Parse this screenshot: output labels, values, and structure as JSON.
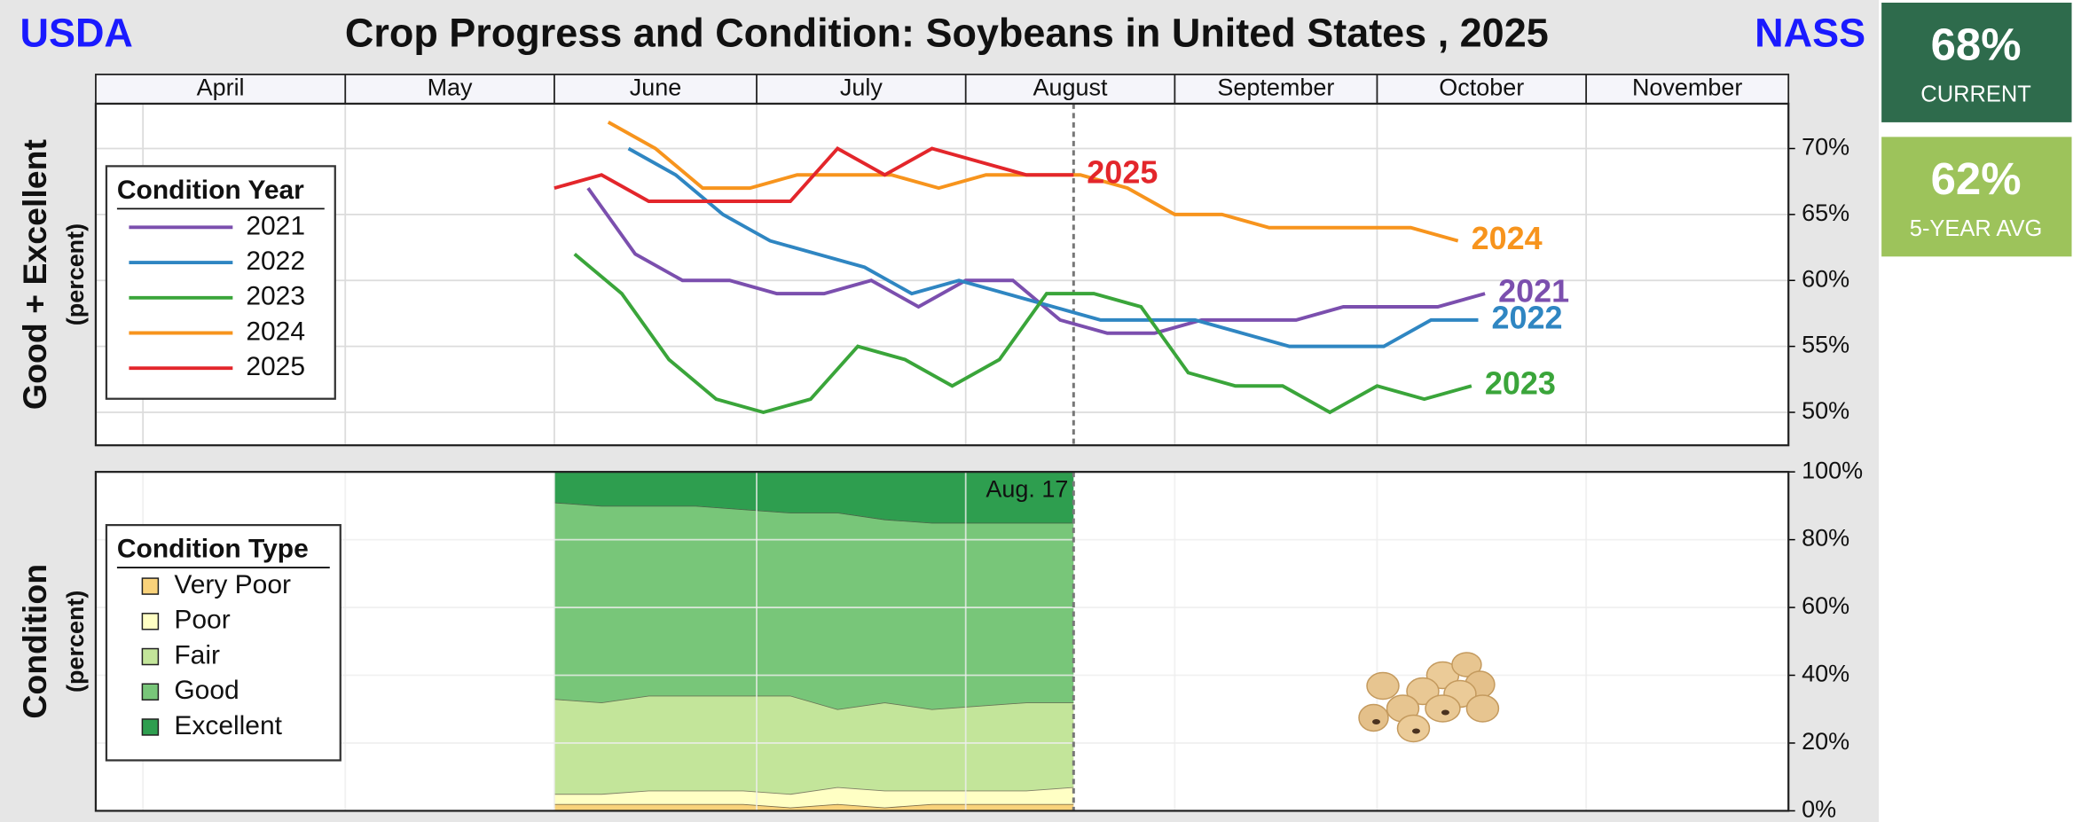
{
  "header": {
    "left": "USDA",
    "title": "Crop Progress and Condition: Soybeans in United States , 2025",
    "right": "NASS"
  },
  "cards": [
    {
      "value": "68%",
      "label": "CURRENT",
      "color": "#2e6b4c"
    },
    {
      "value": "62%",
      "label": "5-YEAR AVG",
      "color": "#9dc35b"
    }
  ],
  "chart_data": [
    {
      "type": "line",
      "y_label": "Good + Excellent",
      "y_sublabel": "(percent)",
      "legend_title": "Condition Year",
      "xlim": [
        84,
        335
      ],
      "xticks": [
        {
          "value": 91,
          "label": "April"
        },
        {
          "value": 121,
          "label": "May"
        },
        {
          "value": 152,
          "label": "June"
        },
        {
          "value": 182,
          "label": "July"
        },
        {
          "value": 213,
          "label": "August"
        },
        {
          "value": 244,
          "label": "September"
        },
        {
          "value": 274,
          "label": "October"
        },
        {
          "value": 305,
          "label": "November"
        }
      ],
      "ylim": [
        47.5,
        73.4
      ],
      "yticks": [
        {
          "value": 50,
          "label": "50%"
        },
        {
          "value": 55,
          "label": "55%"
        },
        {
          "value": 60,
          "label": "60%"
        },
        {
          "value": 65,
          "label": "65%"
        },
        {
          "value": 70,
          "label": "70%"
        }
      ],
      "grid": true,
      "marker_x": 229,
      "series": [
        {
          "name": "2021",
          "color": "#7b4fae",
          "x": [
            157,
            164,
            171,
            178,
            185,
            192,
            199,
            206,
            213,
            220,
            227,
            234,
            241,
            248,
            255,
            262,
            269,
            276,
            283,
            290
          ],
          "values": [
            67,
            62,
            60,
            60,
            59,
            59,
            60,
            58,
            60,
            60,
            57,
            56,
            56,
            57,
            57,
            57,
            58,
            58,
            58,
            59
          ]
        },
        {
          "name": "2022",
          "color": "#2f86c2",
          "x": [
            163,
            170,
            177,
            184,
            191,
            198,
            205,
            212,
            219,
            226,
            233,
            240,
            247,
            254,
            261,
            268,
            275,
            282,
            289
          ],
          "values": [
            70,
            68,
            65,
            63,
            62,
            61,
            59,
            60,
            59,
            58,
            57,
            57,
            57,
            56,
            55,
            55,
            55,
            57,
            57
          ]
        },
        {
          "name": "2023",
          "color": "#3aa53a",
          "x": [
            155,
            162,
            169,
            176,
            183,
            190,
            197,
            204,
            211,
            218,
            225,
            232,
            239,
            246,
            253,
            260,
            267,
            274,
            281,
            288
          ],
          "values": [
            62,
            59,
            54,
            51,
            50,
            51,
            55,
            54,
            52,
            54,
            59,
            59,
            58,
            53,
            52,
            52,
            50,
            52,
            51,
            52
          ]
        },
        {
          "name": "2024",
          "color": "#f7941d",
          "x": [
            160,
            167,
            174,
            181,
            188,
            195,
            202,
            209,
            216,
            223,
            230,
            237,
            244,
            251,
            258,
            265,
            272,
            279,
            286
          ],
          "values": [
            72,
            70,
            67,
            67,
            68,
            68,
            68,
            67,
            68,
            68,
            68,
            67,
            65,
            65,
            64,
            64,
            64,
            64,
            63
          ]
        },
        {
          "name": "2025",
          "color": "#e3262b",
          "x": [
            152,
            159,
            166,
            173,
            180,
            187,
            194,
            201,
            208,
            215,
            222,
            229
          ],
          "values": [
            67,
            68,
            66,
            66,
            66,
            66,
            70,
            68,
            70,
            69,
            68,
            68
          ]
        }
      ]
    },
    {
      "type": "area",
      "stacked": true,
      "y_label": "Condition",
      "y_sublabel": "(percent)",
      "legend_title": "Condition Type",
      "ylim": [
        0,
        100
      ],
      "yticks": [
        {
          "value": 0,
          "label": "0%"
        },
        {
          "value": 20,
          "label": "20%"
        },
        {
          "value": 40,
          "label": "40%"
        },
        {
          "value": 60,
          "label": "60%"
        },
        {
          "value": 80,
          "label": "80%"
        },
        {
          "value": 100,
          "label": "100%"
        }
      ],
      "grid": true,
      "marker": {
        "x": 229,
        "label": "Aug. 17"
      },
      "x": [
        152,
        159,
        166,
        173,
        180,
        187,
        194,
        201,
        208,
        215,
        222,
        229
      ],
      "series": [
        {
          "name": "Very Poor",
          "color": "#f9d27a",
          "values": [
            2,
            2,
            2,
            2,
            2,
            1,
            2,
            1,
            2,
            2,
            2,
            2
          ]
        },
        {
          "name": "Poor",
          "color": "#ffffc4",
          "values": [
            3,
            3,
            4,
            4,
            4,
            4,
            5,
            5,
            4,
            4,
            4,
            5
          ]
        },
        {
          "name": "Fair",
          "color": "#c3e59a",
          "values": [
            28,
            27,
            28,
            28,
            28,
            29,
            23,
            26,
            24,
            25,
            26,
            25
          ]
        },
        {
          "name": "Good",
          "color": "#78c679",
          "values": [
            58,
            58,
            56,
            56,
            55,
            54,
            58,
            54,
            55,
            54,
            53,
            53
          ]
        },
        {
          "name": "Excellent",
          "color": "#2e9e4f",
          "values": [
            9,
            10,
            10,
            10,
            11,
            12,
            12,
            14,
            15,
            15,
            15,
            15
          ]
        }
      ]
    }
  ]
}
